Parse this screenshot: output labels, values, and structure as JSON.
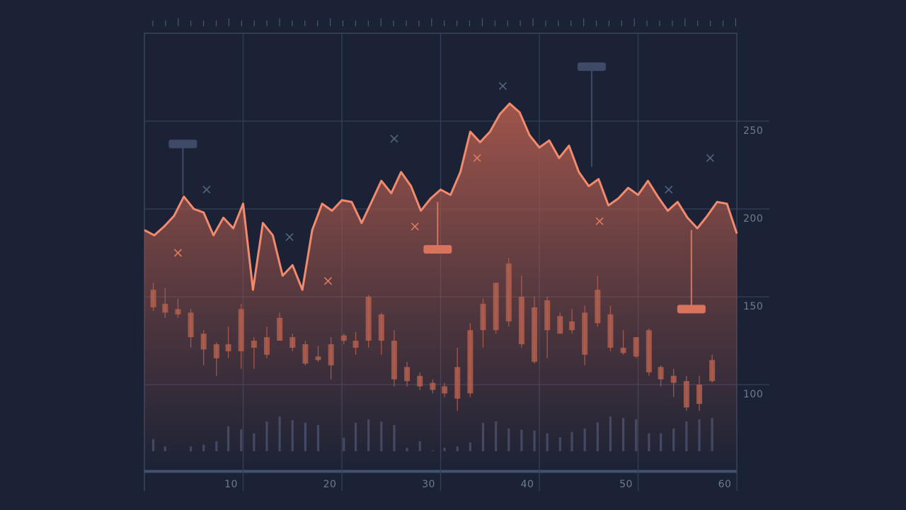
{
  "chart_data": {
    "type": "line",
    "xlim": [
      0,
      60
    ],
    "ylim": [
      50,
      300
    ],
    "xticks": [
      10,
      20,
      30,
      40,
      50,
      60
    ],
    "yticks": [
      100,
      150,
      200,
      250
    ],
    "grid": true,
    "color": "#f28a6e",
    "fill_color": "#a5574c",
    "x": [
      0,
      1,
      2,
      3,
      4,
      5,
      6,
      7,
      8,
      9,
      10,
      11,
      12,
      13,
      14,
      15,
      16,
      17,
      18,
      19,
      20,
      21,
      22,
      23,
      24,
      25,
      26,
      27,
      28,
      29,
      30,
      31,
      32,
      33,
      34,
      35,
      36,
      37,
      38,
      39,
      40,
      41,
      42,
      43,
      44,
      45,
      46,
      47,
      48,
      49,
      50,
      51,
      52,
      53,
      54,
      55,
      56,
      57,
      58,
      59,
      60
    ],
    "values": [
      188,
      185,
      190,
      196,
      207,
      200,
      198,
      185,
      195,
      189,
      203,
      154,
      192,
      185,
      162,
      168,
      154,
      188,
      203,
      199,
      205,
      204,
      192,
      204,
      216,
      209,
      221,
      213,
      199,
      206,
      211,
      208,
      221,
      244,
      238,
      244,
      254,
      260,
      255,
      242,
      235,
      239,
      229,
      236,
      221,
      213,
      217,
      202,
      206,
      212,
      208,
      216,
      207,
      199,
      204,
      195,
      189,
      196,
      204,
      203,
      186
    ],
    "candles": {
      "color": "#b8624f",
      "x": [
        0.9,
        2.1,
        3.4,
        4.7,
        6.0,
        7.3,
        8.5,
        9.8,
        11.1,
        12.4,
        13.7,
        15.0,
        16.3,
        17.6,
        18.9,
        20.2,
        21.4,
        22.7,
        24.0,
        25.3,
        26.6,
        27.9,
        29.2,
        30.4,
        31.7,
        33.0,
        34.3,
        35.6,
        36.9,
        38.2,
        39.5,
        40.8,
        42.1,
        43.3,
        44.6,
        45.9,
        47.2,
        48.5,
        49.8,
        51.1,
        52.3,
        53.6,
        54.9,
        56.2,
        57.5
      ],
      "open": [
        154,
        146,
        143,
        141,
        129,
        123,
        123,
        143,
        125,
        127,
        138,
        127,
        123,
        116,
        123,
        128,
        125,
        150,
        140,
        125,
        110,
        105,
        101,
        99,
        110,
        131,
        146,
        158,
        169,
        150,
        144,
        148,
        139,
        136,
        141,
        154,
        140,
        121,
        127,
        131,
        110,
        105,
        102,
        100,
        114
      ],
      "close": [
        144,
        141,
        140,
        127,
        120,
        115,
        119,
        119,
        121,
        117,
        125,
        121,
        112,
        114,
        111,
        125,
        121,
        125,
        125,
        103,
        102,
        99,
        97,
        95,
        92,
        95,
        131,
        131,
        136,
        123,
        113,
        131,
        129,
        131,
        117,
        135,
        121,
        118,
        116,
        107,
        103,
        101,
        87,
        89,
        102
      ],
      "high": [
        158,
        155,
        149,
        143,
        131,
        124,
        133,
        146,
        127,
        133,
        141,
        129,
        125,
        122,
        127,
        129,
        130,
        151,
        141,
        131,
        113,
        107,
        103,
        101,
        121,
        135,
        149,
        158,
        172,
        162,
        150,
        150,
        141,
        143,
        145,
        162,
        145,
        131,
        127,
        132,
        111,
        109,
        105,
        105,
        117
      ],
      "low": [
        142,
        138,
        138,
        121,
        111,
        105,
        115,
        109,
        109,
        115,
        125,
        119,
        111,
        113,
        103,
        123,
        117,
        121,
        117,
        99,
        99,
        97,
        95,
        93,
        85,
        93,
        121,
        129,
        133,
        121,
        112,
        115,
        129,
        129,
        111,
        133,
        119,
        117,
        115,
        105,
        99,
        93,
        85,
        85,
        101
      ]
    },
    "volume": {
      "color": "#3b4866",
      "axis": "y2",
      "values": [
        5.2,
        3.5,
        1.1,
        3.5,
        3.9,
        4.7,
        8.1,
        7.4,
        6.5,
        9.2,
        10.3,
        9.5,
        8.9,
        8.4,
        2.3,
        5.5,
        8.9,
        9.7,
        9.2,
        8.4,
        3.2,
        4.7,
        2.6,
        3.2,
        3.5,
        4.4,
        8.9,
        9.2,
        7.6,
        7.3,
        7.1,
        6.5,
        5.6,
        6.8,
        7.6,
        9.0,
        10.3,
        10.0,
        9.7,
        6.5,
        6.5,
        7.6,
        9.2,
        9.7,
        10.0
      ]
    },
    "y2lim": [
      0,
      100
    ],
    "markers": {
      "x": [
        3.4,
        6.3,
        14.7,
        18.6,
        25.3,
        27.4,
        33.7,
        36.3,
        46.1,
        53.1,
        57.3
      ],
      "y": [
        175,
        211,
        184,
        159,
        240,
        190,
        229,
        270,
        193,
        211,
        229
      ],
      "colors": [
        "#e07a62",
        "#55637f",
        "#55637f",
        "#e07a62",
        "#55637f",
        "#e07a62",
        "#e07a62",
        "#55637f",
        "#e07a62",
        "#55637f",
        "#55637f"
      ]
    },
    "pins": {
      "x": [
        3.9,
        29.7,
        45.3,
        55.4
      ],
      "head": [
        237,
        177,
        281,
        143
      ],
      "tail": [
        208,
        204,
        224,
        188
      ],
      "colors": [
        "#3e4a68",
        "#d9735e",
        "#3e4a68",
        "#d9735e"
      ]
    }
  }
}
